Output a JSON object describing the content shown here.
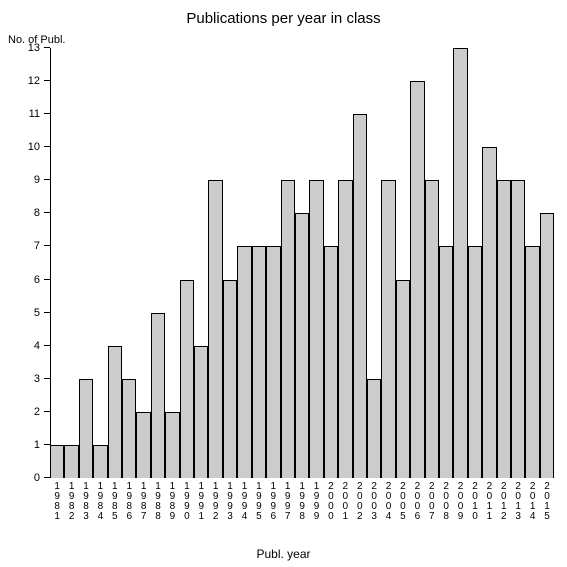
{
  "chart": {
    "type": "bar",
    "title": "Publications per year in class",
    "title_fontsize": 15,
    "y_axis_label": "No. of Publ.",
    "x_axis_label": "Publ. year",
    "label_fontsize": 11,
    "categories": [
      "1981",
      "1982",
      "1983",
      "1984",
      "1985",
      "1986",
      "1987",
      "1988",
      "1989",
      "1990",
      "1991",
      "1992",
      "1993",
      "1994",
      "1995",
      "1996",
      "1997",
      "1998",
      "1999",
      "2000",
      "2001",
      "2002",
      "2003",
      "2004",
      "2005",
      "2006",
      "2007",
      "2008",
      "2009",
      "2010",
      "2011",
      "2012",
      "2013",
      "2014",
      "2015"
    ],
    "values": [
      1,
      1,
      3,
      1,
      4,
      3,
      2,
      5,
      2,
      6,
      4,
      9,
      6,
      7,
      7,
      7,
      9,
      8,
      9,
      7,
      9,
      11,
      3,
      9,
      6,
      12,
      9,
      7,
      13,
      7,
      10,
      9,
      9,
      7,
      8
    ],
    "bar_color": "#cccccc",
    "bar_border_color": "#000000",
    "background_color": "#ffffff",
    "ylim": [
      0,
      13
    ],
    "y_ticks": [
      0,
      1,
      2,
      3,
      4,
      5,
      6,
      7,
      8,
      9,
      10,
      11,
      12,
      13
    ],
    "axis_color": "#000000",
    "tick_fontsize": 11,
    "xlabel_fontsize": 10
  }
}
